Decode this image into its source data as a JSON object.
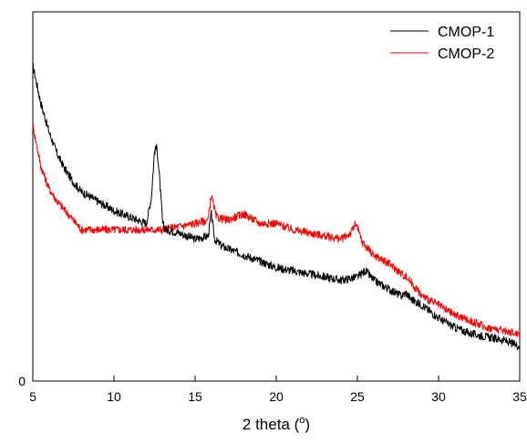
{
  "chart_data": {
    "type": "line",
    "xlabel": "2 theta (°)",
    "xlabel_main": "2 theta (",
    "xlabel_sup": "o",
    "xlabel_close": ")",
    "ylabel": "",
    "xlim": [
      5,
      35
    ],
    "ylim": [
      0,
      100
    ],
    "x_ticks": [
      5,
      10,
      15,
      20,
      25,
      30,
      35
    ],
    "y_ticks": [
      0
    ],
    "grid": false,
    "legend_position": "top-right",
    "series": [
      {
        "name": "CMOP-1",
        "color": "#000000",
        "x": [
          5,
          5.5,
          6,
          6.5,
          7,
          7.5,
          8,
          9,
          10,
          11,
          12,
          12.3,
          12.5,
          12.65,
          12.8,
          13.0,
          13.2,
          14,
          15,
          15.8,
          16.0,
          16.2,
          16.6,
          17,
          18,
          19,
          20,
          21,
          22,
          23,
          24,
          25,
          25.5,
          26,
          27,
          27.7,
          28.0,
          28.3,
          29,
          30,
          31,
          32,
          33,
          34,
          35
        ],
        "values": [
          100,
          88,
          79,
          72,
          67,
          63,
          60,
          57,
          54,
          52,
          50,
          58,
          73,
          74,
          65,
          50,
          48,
          47,
          45,
          46,
          53,
          45,
          43,
          42,
          40,
          38,
          36,
          35,
          34,
          33,
          32,
          33,
          35,
          32,
          29,
          27,
          28,
          26,
          24,
          20,
          17,
          15,
          14,
          13,
          11
        ]
      },
      {
        "name": "CMOP-2",
        "color": "#ff0000",
        "x": [
          5,
          5.5,
          6,
          6.5,
          7,
          8,
          9,
          10,
          11,
          12,
          13,
          14,
          15,
          15.8,
          16.0,
          16.3,
          17,
          18,
          19,
          20,
          21,
          22,
          23,
          24,
          24.6,
          24.9,
          25.3,
          26,
          27,
          28,
          28.2,
          28.5,
          29,
          30,
          31,
          32,
          33,
          34,
          35
        ],
        "values": [
          81,
          68,
          61,
          57,
          54,
          48,
          48,
          48,
          48,
          48,
          48,
          49,
          50,
          51,
          59,
          52,
          51,
          53,
          50,
          50,
          48,
          47,
          46,
          45,
          47,
          50,
          44,
          40,
          37,
          33,
          32,
          30,
          27,
          24,
          21,
          19,
          17,
          16,
          15
        ]
      }
    ]
  }
}
